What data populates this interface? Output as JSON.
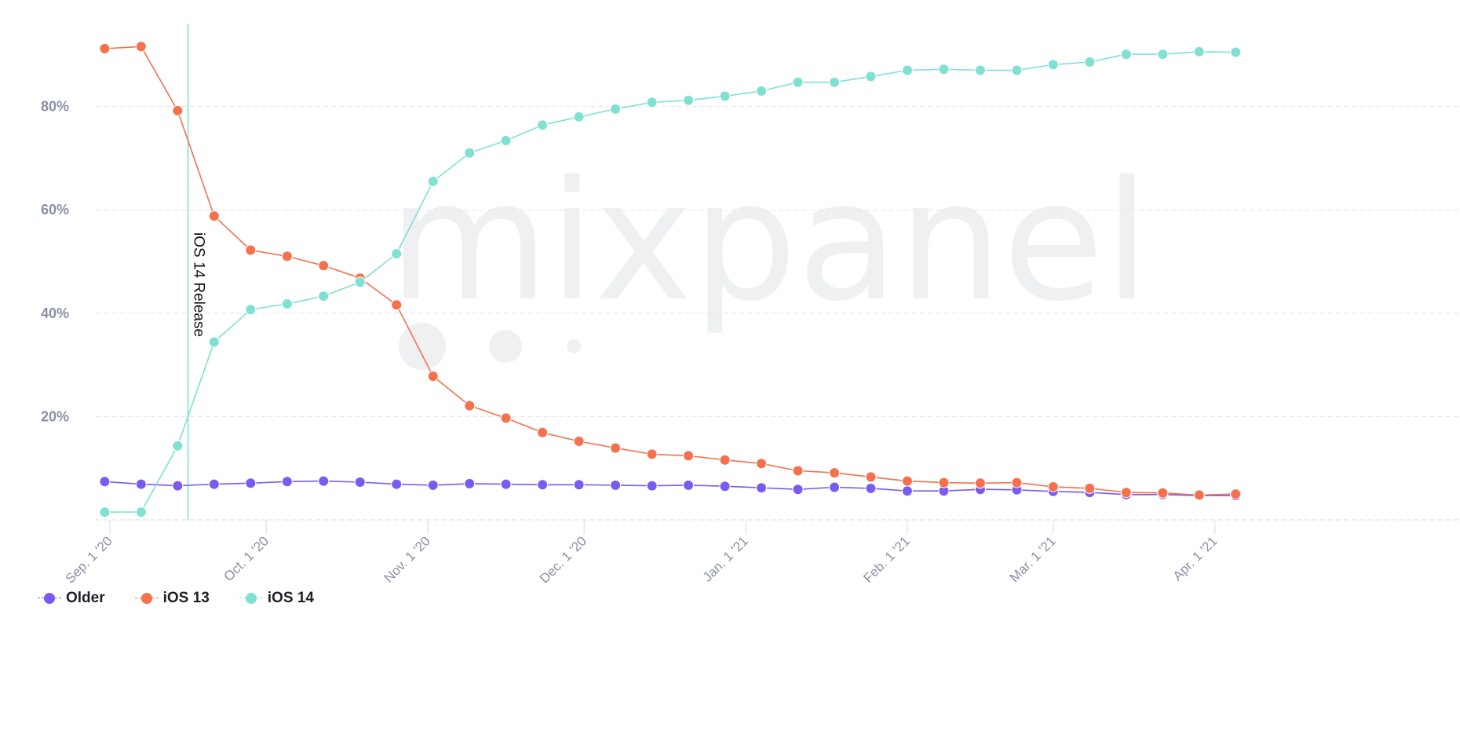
{
  "watermark": "mixpanel",
  "colors": {
    "older": "#7a5af0",
    "ios13": "#f5704c",
    "ios14": "#7fe0d3",
    "grid": "#e3e5ea",
    "tick": "#8a90a6"
  },
  "chart_data": {
    "type": "line",
    "title": "",
    "xlabel": "",
    "ylabel": "",
    "ylim": [
      0,
      100
    ],
    "yticks": [
      "20%",
      "40%",
      "60%",
      "80%"
    ],
    "ytick_values": [
      20,
      40,
      60,
      80
    ],
    "grid": true,
    "legend_position": "bottom-left",
    "x_start_date": "2020-09-01",
    "x_tick_labels": [
      "Sep. 1 '20",
      "Oct. 1 '20",
      "Nov. 1 '20",
      "Dec. 1 '20",
      "Jan. 1 '21",
      "Feb. 1 '21",
      "Mar. 1 '21",
      "Apr. 1 '21"
    ],
    "x_tick_dates": [
      "2020-09-01",
      "2020-10-01",
      "2020-11-01",
      "2020-12-01",
      "2021-01-01",
      "2021-02-01",
      "2021-03-01",
      "2021-04-01"
    ],
    "x": [
      "2020-08-31",
      "2020-09-07",
      "2020-09-14",
      "2020-09-21",
      "2020-09-28",
      "2020-10-05",
      "2020-10-12",
      "2020-10-19",
      "2020-10-26",
      "2020-11-02",
      "2020-11-09",
      "2020-11-16",
      "2020-11-23",
      "2020-11-30",
      "2020-12-07",
      "2020-12-14",
      "2020-12-21",
      "2020-12-28",
      "2021-01-04",
      "2021-01-11",
      "2021-01-18",
      "2021-01-25",
      "2021-02-01",
      "2021-02-08",
      "2021-02-15",
      "2021-02-22",
      "2021-03-01",
      "2021-03-08",
      "2021-03-15",
      "2021-03-22",
      "2021-03-29",
      "2021-04-05"
    ],
    "series": [
      {
        "name": "Older",
        "color": "#7a5af0",
        "values": [
          7.4,
          6.9,
          6.6,
          6.9,
          7.1,
          7.4,
          7.5,
          7.3,
          6.9,
          6.7,
          7.0,
          6.9,
          6.8,
          6.8,
          6.7,
          6.6,
          6.7,
          6.5,
          6.2,
          5.9,
          6.3,
          6.1,
          5.6,
          5.6,
          5.9,
          5.8,
          5.5,
          5.3,
          4.9,
          4.9,
          4.7,
          4.7
        ]
      },
      {
        "name": "iOS 13",
        "color": "#f5704c",
        "values": [
          91.2,
          91.6,
          79.2,
          58.8,
          52.2,
          51.0,
          49.2,
          46.8,
          41.6,
          27.8,
          22.1,
          19.7,
          16.9,
          15.2,
          13.9,
          12.7,
          12.4,
          11.6,
          10.9,
          9.5,
          9.1,
          8.3,
          7.5,
          7.2,
          7.1,
          7.2,
          6.4,
          6.1,
          5.3,
          5.2,
          4.8,
          5.0
        ]
      },
      {
        "name": "iOS 14",
        "color": "#7fe0d3",
        "values": [
          1.5,
          1.5,
          14.3,
          34.4,
          40.7,
          41.8,
          43.3,
          46.0,
          51.5,
          65.5,
          71.0,
          73.4,
          76.4,
          78.0,
          79.5,
          80.8,
          81.2,
          82.0,
          83.0,
          84.7,
          84.7,
          85.8,
          87.0,
          87.2,
          87.0,
          87.0,
          88.1,
          88.6,
          90.1,
          90.1,
          90.6,
          90.5
        ]
      }
    ],
    "annotations": [
      {
        "label": "iOS 14 Release",
        "date": "2020-09-16"
      }
    ]
  },
  "legend": [
    {
      "label": "Older",
      "color": "#7a5af0"
    },
    {
      "label": "iOS 13",
      "color": "#f5704c"
    },
    {
      "label": "iOS 14",
      "color": "#7fe0d3"
    }
  ]
}
